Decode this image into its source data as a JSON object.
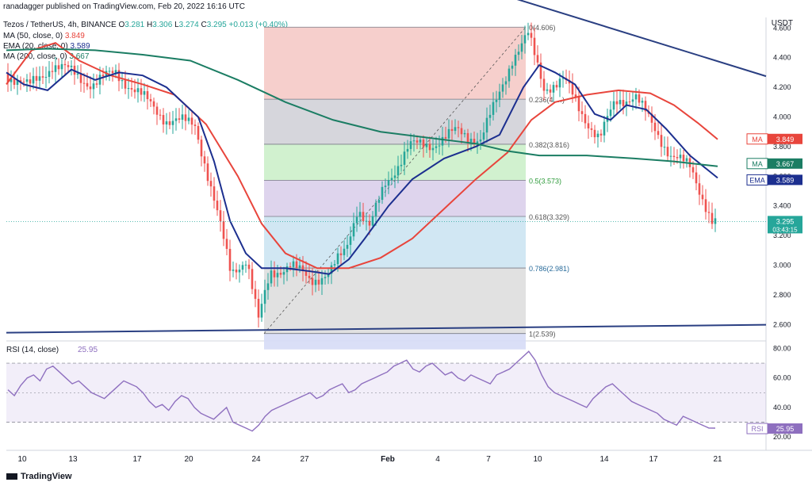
{
  "published": "ranadagger published on TradingView.com, Feb 20, 2022 16:16 UTC",
  "symbol_header": {
    "name": "Tezos / TetherUS, 4h, BINANCE",
    "o_label": "O",
    "o": "3.281",
    "h_label": "H",
    "h": "3.306",
    "l_label": "L",
    "l": "3.274",
    "c_label": "C",
    "c": "3.295",
    "change": "+0.013 (+0.40%)"
  },
  "indicators": [
    {
      "label": "MA (50, close, 0)",
      "value": "3.849"
    },
    {
      "label": "EMA (20, close, 0)",
      "value": "3.589"
    },
    {
      "label": "MA (200, close, 0)",
      "value": "3.667"
    }
  ],
  "currency": "USDT",
  "brand": "TradingView",
  "colors": {
    "up": "#26a69a",
    "down": "#ef5350",
    "ma50": "#e8453c",
    "ema20": "#1c2f8f",
    "ma200": "#1b7d63",
    "trend": "#2a3f82",
    "rsi": "#8e6fbf"
  },
  "chart_data": {
    "type": "candlestick",
    "price_axis": {
      "ticks": [
        "4.600",
        "4.400",
        "4.200",
        "4.000",
        "3.800",
        "3.600",
        "3.400",
        "3.200",
        "3.000",
        "2.800",
        "2.600"
      ]
    },
    "x_ticks": [
      "10",
      "13",
      "17",
      "20",
      "24",
      "27",
      "Feb",
      "4",
      "7",
      "10",
      "14",
      "17",
      "21"
    ],
    "price_labels": [
      {
        "tag": "MA",
        "value": "3.849"
      },
      {
        "tag": "MA",
        "value": "3.667"
      },
      {
        "tag": "EMA",
        "value": "3.589"
      },
      {
        "tag": "",
        "value": "3.295",
        "sub": "03:43:15"
      }
    ],
    "fib_levels": [
      {
        "label": "0(4.606)",
        "price": 4.606
      },
      {
        "label": "0.236(4.…)",
        "price": 4.12
      },
      {
        "label": "0.382(3.816)",
        "price": 3.816
      },
      {
        "label": "0.5(3.573)",
        "price": 3.573
      },
      {
        "label": "0.618(3.329)",
        "price": 3.329
      },
      {
        "label": "0.786(2.981)",
        "price": 2.981
      },
      {
        "label": "1(2.539)",
        "price": 2.539
      }
    ],
    "rsi": {
      "label": "RSI (14, close)",
      "value": "25.95",
      "tag": "RSI",
      "ticks": [
        "80.00",
        "60.00",
        "40.00",
        "20.00"
      ],
      "upper": 70,
      "lower": 30,
      "series": [
        52,
        48,
        55,
        60,
        62,
        58,
        66,
        68,
        64,
        60,
        56,
        58,
        54,
        50,
        48,
        46,
        50,
        54,
        58,
        56,
        54,
        50,
        44,
        40,
        42,
        38,
        44,
        48,
        46,
        40,
        36,
        34,
        32,
        36,
        40,
        30,
        28,
        26,
        24,
        28,
        34,
        38,
        40,
        42,
        44,
        46,
        48,
        50,
        46,
        48,
        52,
        54,
        56,
        50,
        52,
        56,
        58,
        60,
        62,
        64,
        68,
        70,
        72,
        66,
        64,
        68,
        70,
        66,
        62,
        64,
        60,
        58,
        62,
        60,
        58,
        56,
        62,
        64,
        66,
        70,
        74,
        78,
        72,
        62,
        54,
        50,
        48,
        46,
        44,
        42,
        40,
        46,
        50,
        54,
        56,
        52,
        48,
        44,
        42,
        40,
        38,
        36,
        32,
        30,
        28,
        34,
        32,
        30,
        28,
        26,
        25.95
      ]
    },
    "ma_values": {
      "ma50": 3.849,
      "ema20": 3.589,
      "ma200": 3.667
    },
    "last_price": 3.295
  }
}
